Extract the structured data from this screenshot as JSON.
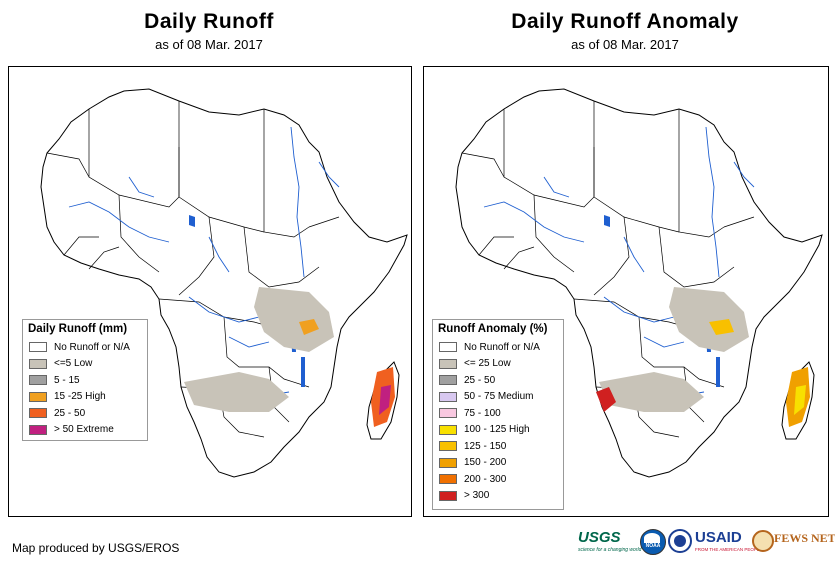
{
  "left": {
    "title": "Daily Runoff",
    "subtitle": "as of 08 Mar. 2017",
    "legend": {
      "title": "Daily Runoff (mm)",
      "items": [
        {
          "label": "No Runoff or N/A",
          "color": "#ffffff"
        },
        {
          "label": "<=5 Low",
          "color": "#c8c3b8"
        },
        {
          "label": "5 - 15",
          "color": "#a0a0a0"
        },
        {
          "label": "15 -25 High",
          "color": "#f0a020"
        },
        {
          "label": "25 - 50",
          "color": "#f06020"
        },
        {
          "label": "> 50 Extreme",
          "color": "#c02080"
        }
      ]
    }
  },
  "right": {
    "title": "Daily Runoff Anomaly",
    "subtitle": "as of 08 Mar. 2017",
    "legend": {
      "title": "Runoff Anomaly (%)",
      "items": [
        {
          "label": "No Runoff or N/A",
          "color": "#ffffff"
        },
        {
          "label": "<= 25 Low",
          "color": "#c8c3b8"
        },
        {
          "label": "25 - 50",
          "color": "#a0a0a0"
        },
        {
          "label": "50 - 75 Medium",
          "color": "#d8c8f0"
        },
        {
          "label": "75 - 100",
          "color": "#f8c8e0"
        },
        {
          "label": "100 - 125 High",
          "color": "#f8e000"
        },
        {
          "label": "125 - 150",
          "color": "#f8c000"
        },
        {
          "label": "150 - 200",
          "color": "#f0a000"
        },
        {
          "label": "200 - 300",
          "color": "#f07000"
        },
        {
          "label": "> 300",
          "color": "#d02020"
        }
      ]
    }
  },
  "footer": "Map produced by USGS/EROS",
  "logos": {
    "usgs": "USGS",
    "usgs_tagline": "science for a changing world",
    "noaa": "NOAA",
    "usaid": "USAID",
    "usaid_tagline": "FROM THE AMERICAN PEOPLE",
    "fewsnet": "FEWS NET"
  }
}
